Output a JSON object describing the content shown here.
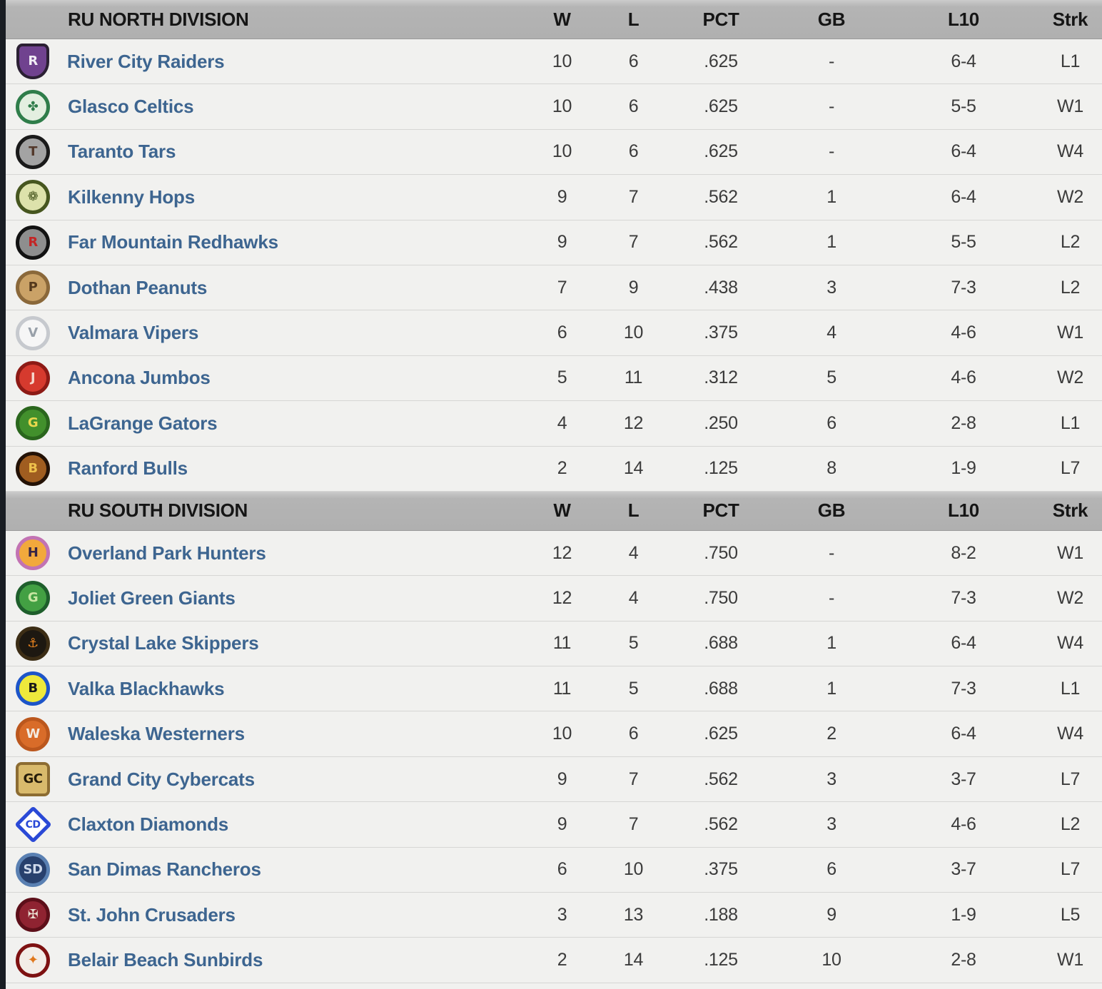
{
  "colors": {
    "page_background": "#f1f1ef",
    "edge_strip": "#191d23",
    "header_background": "#b3b3b3",
    "header_text": "#151515",
    "row_background": "#f1f1ef",
    "row_divider": "#d6d6d4",
    "stat_text": "#3b3b3b",
    "team_link": "#3d6590"
  },
  "table": {
    "columns": [
      "W",
      "L",
      "PCT",
      "GB",
      "L10",
      "Strk"
    ],
    "divisions": [
      {
        "name": "RU NORTH DIVISION",
        "teams": [
          {
            "name": "River City Raiders",
            "w": "10",
            "l": "6",
            "pct": ".625",
            "gb": "-",
            "l10": "6-4",
            "strk": "L1",
            "logo": {
              "icon": "raiders-shield-logo",
              "shape": "shield",
              "bg": "#70428f",
              "ring": "#2b2033",
              "fg": "#f2eef6",
              "glyph": "R"
            }
          },
          {
            "name": "Glasco Celtics",
            "w": "10",
            "l": "6",
            "pct": ".625",
            "gb": "-",
            "l10": "5-5",
            "strk": "W1",
            "logo": {
              "icon": "celtics-clover-logo",
              "shape": "circle",
              "bg": "#e3efe0",
              "ring": "#2f7d4a",
              "fg": "#2f7d4a",
              "glyph": "✤"
            }
          },
          {
            "name": "Taranto Tars",
            "w": "10",
            "l": "6",
            "pct": ".625",
            "gb": "-",
            "l10": "6-4",
            "strk": "W4",
            "logo": {
              "icon": "tars-roundel-logo",
              "shape": "circle",
              "bg": "#a3a3a3",
              "ring": "#1a1a1a",
              "fg": "#53382a",
              "glyph": "T"
            }
          },
          {
            "name": "Kilkenny Hops",
            "w": "9",
            "l": "7",
            "pct": ".562",
            "gb": "1",
            "l10": "6-4",
            "strk": "W2",
            "logo": {
              "icon": "hops-flower-logo",
              "shape": "circle",
              "bg": "#dde2ab",
              "ring": "#46561f",
              "fg": "#46561f",
              "glyph": "❁"
            }
          },
          {
            "name": "Far Mountain Redhawks",
            "w": "9",
            "l": "7",
            "pct": ".562",
            "gb": "1",
            "l10": "5-5",
            "strk": "L2",
            "logo": {
              "icon": "redhawks-roundel-logo",
              "shape": "circle",
              "bg": "#8e8e8e",
              "ring": "#121212",
              "fg": "#c32525",
              "glyph": "R"
            }
          },
          {
            "name": "Dothan Peanuts",
            "w": "7",
            "l": "9",
            "pct": ".438",
            "gb": "3",
            "l10": "7-3",
            "strk": "L2",
            "logo": {
              "icon": "peanuts-mascot-logo",
              "shape": "circle",
              "bg": "#caa267",
              "ring": "#8a683a",
              "fg": "#54391d",
              "glyph": "P"
            }
          },
          {
            "name": "Valmara Vipers",
            "w": "6",
            "l": "10",
            "pct": ".375",
            "gb": "4",
            "l10": "4-6",
            "strk": "W1",
            "logo": {
              "icon": "vipers-snake-logo",
              "shape": "circle",
              "bg": "#f6f6f6",
              "ring": "#c6c9ce",
              "fg": "#98a0a9",
              "glyph": "V"
            }
          },
          {
            "name": "Ancona Jumbos",
            "w": "5",
            "l": "11",
            "pct": ".312",
            "gb": "5",
            "l10": "4-6",
            "strk": "W2",
            "logo": {
              "icon": "jumbos-elephant-logo",
              "shape": "circle",
              "bg": "#d63a2e",
              "ring": "#8d1a15",
              "fg": "#f6d8cd",
              "glyph": "J"
            }
          },
          {
            "name": "LaGrange Gators",
            "w": "4",
            "l": "12",
            "pct": ".250",
            "gb": "6",
            "l10": "2-8",
            "strk": "L1",
            "logo": {
              "icon": "gators-badge-logo",
              "shape": "circle",
              "bg": "#42902c",
              "ring": "#2a661d",
              "fg": "#e9d84d",
              "glyph": "G"
            }
          },
          {
            "name": "Ranford Bulls",
            "w": "2",
            "l": "14",
            "pct": ".125",
            "gb": "8",
            "l10": "1-9",
            "strk": "L7",
            "logo": {
              "icon": "bulls-roundel-logo",
              "shape": "circle",
              "bg": "#a05d20",
              "ring": "#241206",
              "fg": "#eec04b",
              "glyph": "B"
            }
          }
        ]
      },
      {
        "name": "RU SOUTH DIVISION",
        "teams": [
          {
            "name": "Overland Park Hunters",
            "w": "12",
            "l": "4",
            "pct": ".750",
            "gb": "-",
            "l10": "8-2",
            "strk": "W1",
            "logo": {
              "icon": "hunters-owl-logo",
              "shape": "circle",
              "bg": "#f2a93c",
              "ring": "#c273b3",
              "fg": "#362547",
              "glyph": "H"
            }
          },
          {
            "name": "Joliet Green Giants",
            "w": "12",
            "l": "4",
            "pct": ".750",
            "gb": "-",
            "l10": "7-3",
            "strk": "W2",
            "logo": {
              "icon": "green-giants-face-logo",
              "shape": "circle",
              "bg": "#43a043",
              "ring": "#1e5e2b",
              "fg": "#c8e6a2",
              "glyph": "G"
            }
          },
          {
            "name": "Crystal Lake Skippers",
            "w": "11",
            "l": "5",
            "pct": ".688",
            "gb": "1",
            "l10": "6-4",
            "strk": "W4",
            "logo": {
              "icon": "skippers-anchor-logo",
              "shape": "circle",
              "bg": "#1d1811",
              "ring": "#3c2d15",
              "fg": "#e8831f",
              "glyph": "⚓"
            }
          },
          {
            "name": "Valka Blackhawks",
            "w": "11",
            "l": "5",
            "pct": ".688",
            "gb": "1",
            "l10": "7-3",
            "strk": "L1",
            "logo": {
              "icon": "blackhawks-bird-logo",
              "shape": "circle",
              "bg": "#eee93c",
              "ring": "#1d55c9",
              "fg": "#1a1a1a",
              "glyph": "B"
            }
          },
          {
            "name": "Waleska Westerners",
            "w": "10",
            "l": "6",
            "pct": ".625",
            "gb": "2",
            "l10": "6-4",
            "strk": "W4",
            "logo": {
              "icon": "westerners-rider-logo",
              "shape": "circle",
              "bg": "#d96c29",
              "ring": "#bb571d",
              "fg": "#f3ece2",
              "glyph": "W"
            }
          },
          {
            "name": "Grand City Cybercats",
            "w": "9",
            "l": "7",
            "pct": ".562",
            "gb": "3",
            "l10": "3-7",
            "strk": "L7",
            "logo": {
              "icon": "cybercats-plate-logo",
              "shape": "square",
              "bg": "#d9ba6c",
              "ring": "#8c6c32",
              "fg": "#261c09",
              "glyph": "GC"
            }
          },
          {
            "name": "Claxton Diamonds",
            "w": "9",
            "l": "7",
            "pct": ".562",
            "gb": "3",
            "l10": "4-6",
            "strk": "L2",
            "logo": {
              "icon": "diamonds-gem-logo",
              "shape": "diamond",
              "bg": "#ffffff",
              "ring": "#2a49d6",
              "fg": "#2a49d6",
              "glyph": "CD"
            }
          },
          {
            "name": "San Dimas Rancheros",
            "w": "6",
            "l": "10",
            "pct": ".375",
            "gb": "6",
            "l10": "3-7",
            "strk": "L7",
            "logo": {
              "icon": "rancheros-rider-logo",
              "shape": "circle",
              "bg": "#28406d",
              "ring": "#5a80b2",
              "fg": "#cfd9eb",
              "glyph": "SD"
            }
          },
          {
            "name": "St. John Crusaders",
            "w": "3",
            "l": "13",
            "pct": ".188",
            "gb": "9",
            "l10": "1-9",
            "strk": "L5",
            "logo": {
              "icon": "crusaders-crest-logo",
              "shape": "circle",
              "bg": "#8f2331",
              "ring": "#5d0f19",
              "fg": "#e9dfd1",
              "glyph": "✠"
            }
          },
          {
            "name": "Belair Beach Sunbirds",
            "w": "2",
            "l": "14",
            "pct": ".125",
            "gb": "10",
            "l10": "2-8",
            "strk": "W1",
            "logo": {
              "icon": "sunbirds-baseball-logo",
              "shape": "circle",
              "bg": "#f3ede7",
              "ring": "#7d1111",
              "fg": "#e0771b",
              "glyph": "✦"
            }
          }
        ]
      }
    ]
  }
}
